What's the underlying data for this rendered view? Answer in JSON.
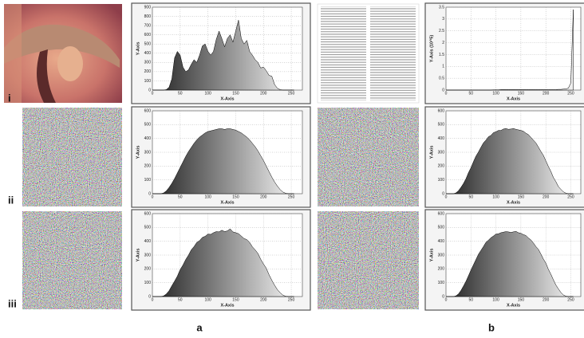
{
  "figure": {
    "rows": [
      "i",
      "ii",
      "iii"
    ],
    "columns": [
      "a",
      "b"
    ]
  },
  "chart_data": [
    {
      "type": "area",
      "xlabel": "X-Axis",
      "ylabel": "Y-Axis",
      "grid": true,
      "xlim": [
        0,
        270
      ],
      "ylim": [
        0,
        900
      ],
      "xticks": [
        0,
        50,
        100,
        150,
        200,
        250
      ],
      "yticks": [
        0,
        100,
        200,
        300,
        400,
        500,
        600,
        700,
        800,
        900
      ],
      "x": [
        0,
        5,
        10,
        15,
        20,
        25,
        30,
        35,
        40,
        45,
        50,
        55,
        60,
        65,
        70,
        75,
        80,
        85,
        90,
        95,
        100,
        105,
        110,
        115,
        120,
        125,
        130,
        135,
        140,
        145,
        150,
        155,
        160,
        165,
        170,
        175,
        180,
        185,
        190,
        195,
        200,
        205,
        210,
        215,
        220,
        225,
        230,
        235,
        240,
        245,
        250,
        255
      ],
      "values": [
        0,
        0,
        0,
        0,
        0,
        5,
        30,
        120,
        350,
        420,
        380,
        250,
        200,
        220,
        280,
        330,
        300,
        380,
        480,
        500,
        420,
        380,
        420,
        550,
        640,
        560,
        470,
        560,
        600,
        520,
        640,
        760,
        560,
        500,
        540,
        420,
        380,
        330,
        300,
        240,
        250,
        210,
        160,
        150,
        60,
        20,
        5,
        0,
        0,
        0,
        0,
        0
      ]
    },
    {
      "type": "area",
      "xlabel": "X-Axis",
      "ylabel": "Y-Axis",
      "grid": true,
      "xlim": [
        0,
        270
      ],
      "ylim": [
        0,
        600
      ],
      "xticks": [
        0,
        50,
        100,
        150,
        200,
        250
      ],
      "yticks": [
        0,
        100,
        200,
        300,
        400,
        500,
        600
      ],
      "x": [
        0,
        5,
        10,
        15,
        20,
        25,
        30,
        35,
        40,
        45,
        50,
        55,
        60,
        65,
        70,
        75,
        80,
        85,
        90,
        95,
        100,
        105,
        110,
        115,
        120,
        125,
        130,
        135,
        140,
        145,
        150,
        155,
        160,
        165,
        170,
        175,
        180,
        185,
        190,
        195,
        200,
        205,
        210,
        215,
        220,
        225,
        230,
        235,
        240,
        245,
        250,
        255
      ],
      "values": [
        0,
        0,
        0,
        0,
        5,
        20,
        45,
        75,
        110,
        150,
        190,
        230,
        270,
        305,
        335,
        365,
        390,
        410,
        425,
        440,
        450,
        455,
        460,
        465,
        470,
        470,
        465,
        470,
        470,
        465,
        460,
        450,
        440,
        425,
        410,
        390,
        365,
        340,
        310,
        275,
        240,
        200,
        160,
        120,
        85,
        55,
        30,
        12,
        3,
        0,
        0,
        0
      ]
    },
    {
      "type": "area",
      "xlabel": "X-Axis",
      "ylabel": "Y-Axis",
      "grid": true,
      "xlim": [
        0,
        270
      ],
      "ylim": [
        0,
        600
      ],
      "xticks": [
        0,
        50,
        100,
        150,
        200,
        250
      ],
      "yticks": [
        0,
        100,
        200,
        300,
        400,
        500,
        600
      ],
      "x": [
        0,
        5,
        10,
        15,
        20,
        25,
        30,
        35,
        40,
        45,
        50,
        55,
        60,
        65,
        70,
        75,
        80,
        85,
        90,
        95,
        100,
        105,
        110,
        115,
        120,
        125,
        130,
        135,
        140,
        145,
        150,
        155,
        160,
        165,
        170,
        175,
        180,
        185,
        190,
        195,
        200,
        205,
        210,
        215,
        220,
        225,
        230,
        235,
        240,
        245,
        250,
        255
      ],
      "values": [
        0,
        0,
        0,
        0,
        4,
        18,
        42,
        78,
        112,
        148,
        195,
        228,
        268,
        300,
        338,
        362,
        392,
        405,
        428,
        436,
        452,
        450,
        462,
        470,
        468,
        480,
        470,
        475,
        490,
        468,
        462,
        455,
        438,
        420,
        412,
        392,
        360,
        338,
        312,
        270,
        236,
        205,
        158,
        118,
        82,
        50,
        28,
        10,
        2,
        0,
        0,
        0
      ]
    },
    {
      "type": "area",
      "xlabel": "X-Axis",
      "ylabel": "Y-Axis (10^5)",
      "grid": true,
      "xlim": [
        0,
        270
      ],
      "ylim": [
        0,
        3.5
      ],
      "xticks": [
        0,
        50,
        100,
        150,
        200,
        250
      ],
      "yticks": [
        0,
        0.5,
        1,
        1.5,
        2,
        2.5,
        3,
        3.5
      ],
      "x": [
        0,
        5,
        10,
        15,
        20,
        25,
        30,
        35,
        40,
        45,
        50,
        55,
        60,
        65,
        70,
        75,
        80,
        85,
        90,
        95,
        100,
        105,
        110,
        115,
        120,
        125,
        130,
        135,
        140,
        145,
        150,
        155,
        160,
        165,
        170,
        175,
        180,
        185,
        190,
        195,
        200,
        205,
        210,
        215,
        220,
        225,
        230,
        235,
        240,
        245,
        250,
        255
      ],
      "values": [
        0,
        0,
        0,
        0,
        0,
        0,
        0,
        0,
        0,
        0,
        0,
        0,
        0,
        0,
        0,
        0,
        0,
        0,
        0,
        0.01,
        0.01,
        0.01,
        0.02,
        0.02,
        0.02,
        0.02,
        0.02,
        0.02,
        0.02,
        0.02,
        0.02,
        0.02,
        0.02,
        0.02,
        0.02,
        0.02,
        0.02,
        0.02,
        0.02,
        0.02,
        0.02,
        0.02,
        0.02,
        0.02,
        0.02,
        0.03,
        0.03,
        0.04,
        0.05,
        0.08,
        0.3,
        3.4
      ]
    },
    {
      "type": "area",
      "xlabel": "X-Axis",
      "ylabel": "Y-Axis",
      "grid": true,
      "xlim": [
        0,
        270
      ],
      "ylim": [
        0,
        600
      ],
      "xticks": [
        0,
        50,
        100,
        150,
        200,
        250
      ],
      "yticks": [
        0,
        100,
        200,
        300,
        400,
        500,
        600
      ],
      "x": [
        0,
        5,
        10,
        15,
        20,
        25,
        30,
        35,
        40,
        45,
        50,
        55,
        60,
        65,
        70,
        75,
        80,
        85,
        90,
        95,
        100,
        105,
        110,
        115,
        120,
        125,
        130,
        135,
        140,
        145,
        150,
        155,
        160,
        165,
        170,
        175,
        180,
        185,
        190,
        195,
        200,
        205,
        210,
        215,
        220,
        225,
        230,
        235,
        240,
        245,
        250,
        255
      ],
      "values": [
        0,
        0,
        0,
        0,
        6,
        22,
        46,
        74,
        108,
        152,
        188,
        232,
        272,
        302,
        336,
        368,
        388,
        412,
        422,
        442,
        448,
        458,
        458,
        468,
        472,
        466,
        468,
        472,
        466,
        462,
        458,
        452,
        438,
        428,
        408,
        388,
        368,
        338,
        306,
        278,
        238,
        198,
        162,
        118,
        88,
        52,
        32,
        14,
        4,
        0,
        0,
        0
      ]
    },
    {
      "type": "area",
      "xlabel": "X-Axis",
      "ylabel": "Y-Axis",
      "grid": true,
      "xlim": [
        0,
        270
      ],
      "ylim": [
        0,
        600
      ],
      "xticks": [
        0,
        50,
        100,
        150,
        200,
        250
      ],
      "yticks": [
        0,
        100,
        200,
        300,
        400,
        500,
        600
      ],
      "x": [
        0,
        5,
        10,
        15,
        20,
        25,
        30,
        35,
        40,
        45,
        50,
        55,
        60,
        65,
        70,
        75,
        80,
        85,
        90,
        95,
        100,
        105,
        110,
        115,
        120,
        125,
        130,
        135,
        140,
        145,
        150,
        155,
        160,
        165,
        170,
        175,
        180,
        185,
        190,
        195,
        200,
        205,
        210,
        215,
        220,
        225,
        230,
        235,
        240,
        245,
        250,
        255
      ],
      "values": [
        0,
        0,
        0,
        0,
        5,
        19,
        44,
        76,
        110,
        150,
        192,
        230,
        268,
        306,
        334,
        362,
        392,
        408,
        426,
        438,
        452,
        454,
        462,
        466,
        470,
        468,
        464,
        468,
        472,
        462,
        458,
        448,
        442,
        424,
        410,
        388,
        362,
        342,
        308,
        272,
        242,
        198,
        162,
        122,
        84,
        56,
        30,
        12,
        3,
        0,
        0,
        0
      ]
    }
  ]
}
